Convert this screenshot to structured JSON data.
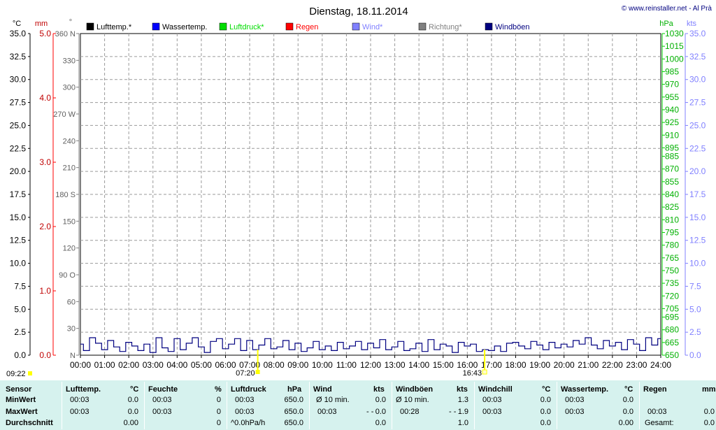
{
  "chart_data": {
    "type": "line",
    "title": "Dienstag, 18.11.2014",
    "copyright": "© www.reinstaller.net - Al Prà",
    "legend": [
      {
        "label": "Lufttemp.*",
        "color": "#000000"
      },
      {
        "label": "Wassertemp.",
        "color": "#0000ff"
      },
      {
        "label": "Luftdruck*",
        "color": "#00dd00"
      },
      {
        "label": "Regen",
        "color": "#ff0000"
      },
      {
        "label": "Wind*",
        "color": "#8080ff"
      },
      {
        "label": "Richtung*",
        "color": "#808080"
      },
      {
        "label": "Windböen",
        "color": "#000080"
      }
    ],
    "axes": {
      "temp_unit": "°C",
      "temp_ticks": [
        "35.0",
        "32.5",
        "30.0",
        "27.5",
        "25.0",
        "22.5",
        "20.0",
        "17.5",
        "15.0",
        "12.5",
        "10.0",
        "7.5",
        "5.0",
        "2.5",
        "0.0"
      ],
      "rain_unit": "mm",
      "rain_ticks": [
        "5.0",
        "4.0",
        "3.0",
        "2.0",
        "1.0",
        "0.0"
      ],
      "dir_unit": "°",
      "dir_ticks": [
        "360 N",
        "330",
        "300",
        "270 W",
        "240",
        "210",
        "180 S",
        "150",
        "120",
        "90  O",
        "60",
        "30",
        "N"
      ],
      "pressure_unit": "hPa",
      "pressure_ticks": [
        "1030",
        "1015",
        "1000",
        "985",
        "970",
        "955",
        "940",
        "925",
        "910",
        "895",
        "885",
        "870",
        "855",
        "840",
        "825",
        "810",
        "795",
        "780",
        "765",
        "750",
        "735",
        "720",
        "705",
        "695",
        "680",
        "665",
        "650"
      ],
      "wind_unit": "kts",
      "wind_ticks": [
        "35.0",
        "32.5",
        "30.0",
        "27.5",
        "25.0",
        "22.5",
        "20.0",
        "17.5",
        "15.0",
        "12.5",
        "10.0",
        "7.5",
        "5.0",
        "2.5",
        "0.0"
      ],
      "time_ticks": [
        "00:00",
        "01:00",
        "02:00",
        "03:00",
        "04:00",
        "05:00",
        "06:00",
        "07:00",
        "08:00",
        "09:00",
        "10:00",
        "11:00",
        "12:00",
        "13:00",
        "14:00",
        "15:00",
        "16:00",
        "17:00",
        "18:00",
        "19:00",
        "20:00",
        "21:00",
        "22:00",
        "23:00",
        "24:00"
      ],
      "grid": true
    },
    "markers": [
      {
        "label": "09:22",
        "color": "#ffff00"
      },
      {
        "label": "07:20",
        "color": "#ffff00"
      },
      {
        "label": "16:43",
        "color": "#ffff00"
      }
    ],
    "series": [
      {
        "name": "Windböen",
        "color": "#000080",
        "x_hours": [
          0,
          0.25,
          0.5,
          0.75,
          1,
          1.25,
          1.5,
          1.75,
          2,
          2.25,
          2.5,
          2.75,
          3,
          3.25,
          3.5,
          3.75,
          4,
          4.25,
          4.5,
          4.75,
          5,
          5.25,
          5.5,
          5.75,
          6,
          6.25,
          6.5,
          6.75,
          7,
          7.25,
          7.5,
          7.75,
          8,
          8.25,
          8.5,
          8.75,
          9,
          9.25,
          9.5,
          9.75,
          10,
          10.25,
          10.5,
          10.75,
          11,
          11.25,
          11.5,
          11.75,
          12,
          12.25,
          12.5,
          12.75,
          13,
          13.25,
          13.5,
          13.75,
          14,
          14.25,
          14.5,
          14.75,
          15,
          15.25,
          15.5,
          15.75,
          16,
          16.25,
          16.5,
          16.75,
          17,
          17.25,
          17.5,
          17.75,
          18,
          18.25,
          18.5,
          18.75,
          19,
          19.25,
          19.5,
          19.75,
          20,
          20.25,
          20.5,
          20.75,
          21,
          21.25,
          21.5,
          21.75,
          22,
          22.25,
          22.5,
          22.75,
          23,
          23.25,
          23.5,
          23.75,
          24
        ],
        "values_kts": [
          1.2,
          0.5,
          1.9,
          1.3,
          0.6,
          1.6,
          0.9,
          0.4,
          1.4,
          1.0,
          0.5,
          1.2,
          0.3,
          1.9,
          0.8,
          0.4,
          1.8,
          0.6,
          1.3,
          1.9,
          0.9,
          0.3,
          1.5,
          1.8,
          0.7,
          1.2,
          1.8,
          0.5,
          1.6,
          0.6,
          1.1,
          1.8,
          0.7,
          0.9,
          1.6,
          0.6,
          1.3,
          0.4,
          0.8,
          1.5,
          0.6,
          1.0,
          0.5,
          1.4,
          0.7,
          1.0,
          1.5,
          0.6,
          1.3,
          0.8,
          1.7,
          0.6,
          0.9,
          1.5,
          0.5,
          0.7,
          1.3,
          0.4,
          1.7,
          0.6,
          1.2,
          1.0,
          0.3,
          1.4,
          1.0,
          1.2,
          0.4,
          0.6,
          0.5,
          1.0,
          0.4,
          1.3,
          1.4,
          1.0,
          0.7,
          1.5,
          1.1,
          0.6,
          1.4,
          0.8,
          1.2,
          0.9,
          1.6,
          1.2,
          1.9,
          1.1,
          0.7,
          1.6,
          1.0,
          1.4,
          0.6,
          1.7,
          1.2,
          0.5,
          1.9,
          1.1,
          1.8
        ]
      }
    ]
  },
  "stats": {
    "headers": [
      {
        "name": "Sensor",
        "unit": ""
      },
      {
        "name": "Lufttemp.",
        "unit": "°C"
      },
      {
        "name": "Feuchte",
        "unit": "%"
      },
      {
        "name": "Luftdruck",
        "unit": "hPa"
      },
      {
        "name": "Wind",
        "unit": "kts"
      },
      {
        "name": "Windböen",
        "unit": "kts"
      },
      {
        "name": "Windchill",
        "unit": "°C"
      },
      {
        "name": "Wassertemp.",
        "unit": "°C"
      },
      {
        "name": "Regen",
        "unit": "mm"
      }
    ],
    "row_labels": [
      "MinWert",
      "MaxWert",
      "Durchschnitt"
    ],
    "lufttemp": {
      "min_time": "00:03",
      "min": "0.0",
      "max_time": "00:03",
      "max": "0.0",
      "avg": "0.00"
    },
    "feuchte": {
      "min_time": "00:03",
      "min": "0",
      "max_time": "00:03",
      "max": "0",
      "avg": "0"
    },
    "luftdruck": {
      "min_time": "00:03",
      "min": "650.0",
      "max_time": "00:03",
      "max": "650.0",
      "trend": "^0.0hPa/h",
      "avg": "650.0"
    },
    "wind": {
      "min_label": "Ø 10 min.",
      "min": "0.0",
      "max_time": "00:03",
      "max_dir": "- -",
      "max": "0.0",
      "avg": "0.0"
    },
    "windboeen": {
      "min_label": "Ø 10 min.",
      "min": "1.3",
      "max_time": "00:28",
      "max_dir": "- -",
      "max": "1.9",
      "avg": "1.0"
    },
    "windchill": {
      "min_time": "00:03",
      "min": "0.0",
      "max_time": "00:03",
      "max": "0.0",
      "avg": "0.0"
    },
    "wassertemp": {
      "min_time": "00:03",
      "min": "0.0",
      "max_time": "00:03",
      "max": "0.0",
      "avg": "0.00"
    },
    "regen": {
      "max_time": "00:03",
      "max": "0.0",
      "total_label": "Gesamt:",
      "total": "0.0"
    }
  }
}
